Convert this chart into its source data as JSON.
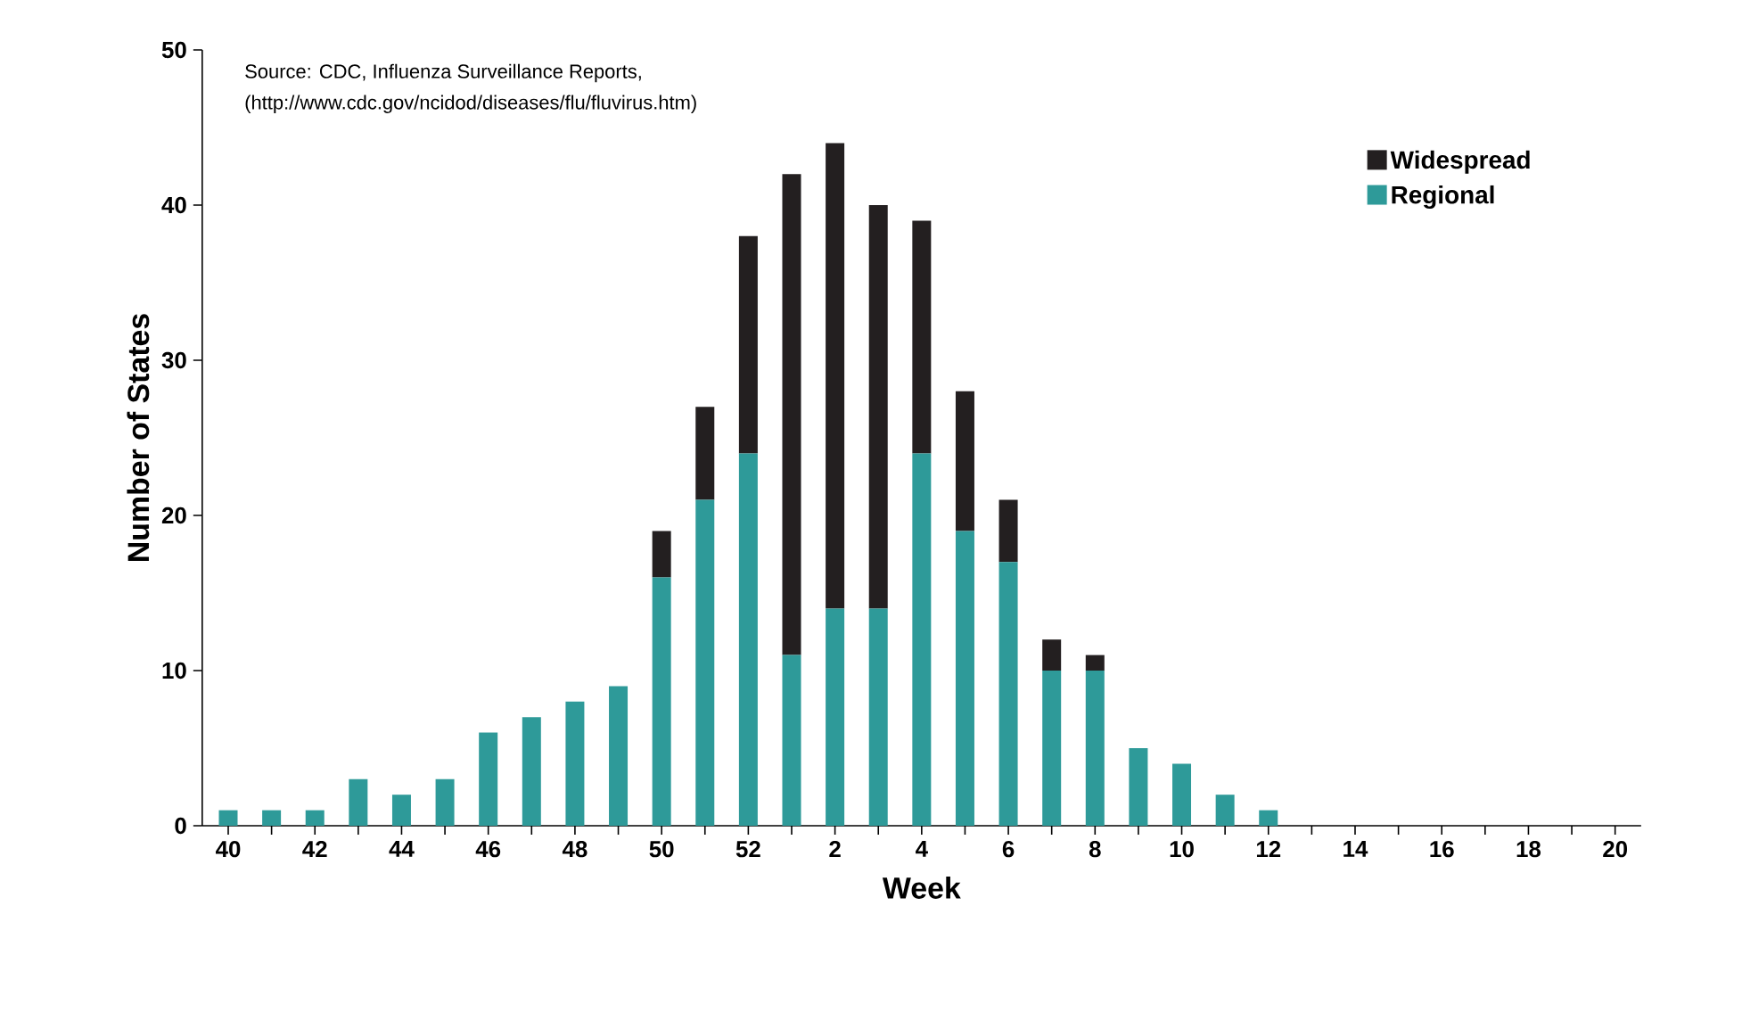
{
  "chart_data": {
    "type": "bar",
    "stacked": true,
    "xlabel": "Week",
    "ylabel": "Number of States",
    "annotations": [
      "Source: CDC, Influenza Surveillance Reports,",
      "(http://www.cdc.gov/ncidod/diseases/flu/fluvirus.htm)"
    ],
    "categories": [
      "40",
      null,
      "42",
      null,
      "44",
      null,
      "46",
      null,
      "48",
      null,
      "50",
      null,
      "52",
      null,
      "2",
      null,
      "4",
      null,
      "6",
      null,
      "8",
      null,
      "10",
      null,
      "12",
      null,
      "14",
      null,
      "16",
      null,
      "18",
      null,
      "20"
    ],
    "series": [
      {
        "name": "Regional",
        "color": "#2e9a99",
        "values": [
          1,
          1,
          1,
          3,
          2,
          3,
          6,
          7,
          8,
          9,
          16,
          21,
          24,
          11,
          14,
          14,
          24,
          19,
          17,
          10,
          10,
          5,
          4,
          2,
          1,
          null,
          null,
          null,
          null,
          null,
          null,
          null,
          null
        ]
      },
      {
        "name": "Widespread",
        "color": "#231f20",
        "values": [
          null,
          null,
          null,
          null,
          null,
          null,
          null,
          null,
          null,
          null,
          3,
          6,
          14,
          31,
          30,
          26,
          15,
          9,
          4,
          2,
          1,
          null,
          null,
          null,
          null,
          null,
          null,
          null,
          null,
          null,
          null,
          null,
          null
        ]
      }
    ],
    "ylim": [
      0,
      50
    ],
    "yticks": [
      0,
      10,
      20,
      30,
      40,
      50
    ],
    "grid": false,
    "legend": "top right"
  }
}
